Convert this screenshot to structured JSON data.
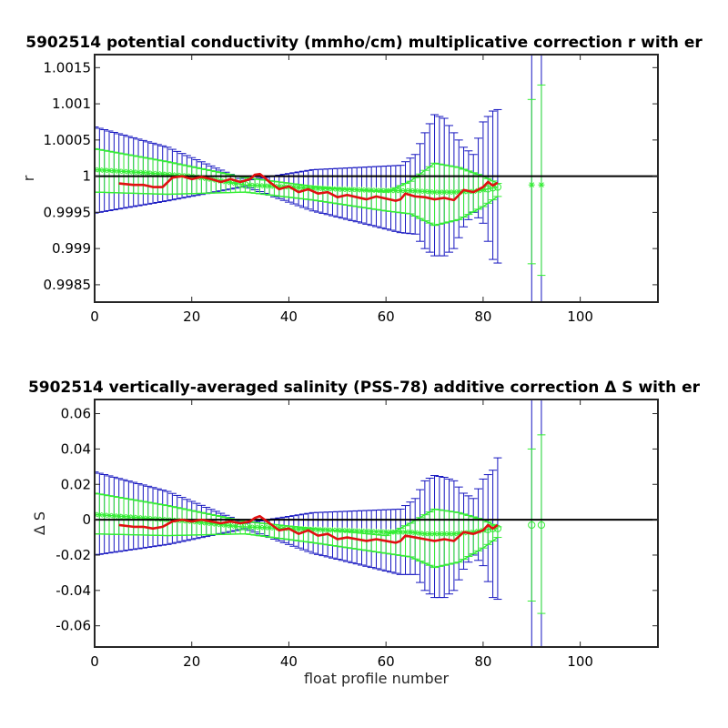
{
  "chart_data": [
    {
      "type": "line",
      "title": "5902514 potential conductivity (mmho/cm) multiplicative correction r with er",
      "xlabel": "",
      "ylabel": "r",
      "xlim": [
        0,
        116
      ],
      "ylim": [
        0.99826,
        1.00168
      ],
      "reference_line": 1.0,
      "xticks": [
        0,
        20,
        40,
        60,
        80,
        100
      ],
      "xtick_labels": [
        "0",
        "20",
        "40",
        "60",
        "80",
        "100"
      ],
      "yticks": [
        0.9985,
        0.999,
        0.9995,
        1.0,
        1.0005,
        1.001,
        1.0015
      ],
      "ytick_labels": [
        "0.9985",
        "0.999",
        "0.9995",
        "1",
        "1.0005",
        "1.001",
        "1.0015"
      ],
      "grid": false,
      "colors": {
        "reference": "#000000",
        "raw_series": "#e01010",
        "fit_series": "#33ee33",
        "envelope_series": "#33ee33",
        "error_bars_big": "#1515c0",
        "error_bars_small": "#33ee33"
      },
      "fit": {
        "x": [
          0,
          10,
          20,
          30,
          31,
          40,
          50,
          60,
          65,
          68,
          70,
          74,
          78,
          80,
          82,
          83,
          90,
          92
        ],
        "y": [
          1.00009,
          1.00005,
          1.0,
          0.99989,
          0.99988,
          0.99985,
          0.99982,
          0.9998,
          0.9998,
          0.99979,
          0.99978,
          0.99978,
          0.99979,
          0.99981,
          0.99984,
          0.99985,
          0.99988,
          0.99988
        ]
      },
      "upper_envelope": {
        "x": [
          0,
          15,
          31,
          45,
          60,
          65,
          70,
          75,
          80,
          83
        ],
        "y": [
          1.00038,
          1.0002,
          0.99998,
          0.99986,
          0.99978,
          0.99993,
          1.00018,
          1.00012,
          1.0,
          0.9999
        ]
      },
      "lower_envelope": {
        "x": [
          0,
          15,
          31,
          45,
          60,
          65,
          70,
          75,
          80,
          83
        ],
        "y": [
          0.99978,
          0.99975,
          0.99978,
          0.99967,
          0.99952,
          0.99948,
          0.99932,
          0.9994,
          0.99958,
          0.99972
        ]
      },
      "error_bars_big": [
        {
          "x": 0,
          "lo": 0.99949,
          "hi": 1.00068
        },
        {
          "x": 15,
          "lo": 0.99966,
          "hi": 1.0004
        },
        {
          "x": 31,
          "lo": 0.99986,
          "hi": 0.99994
        },
        {
          "x": 45,
          "lo": 0.99952,
          "hi": 1.00009
        },
        {
          "x": 63,
          "lo": 0.99922,
          "hi": 1.00015
        },
        {
          "x": 66,
          "lo": 0.9992,
          "hi": 1.0003
        },
        {
          "x": 68,
          "lo": 0.999,
          "hi": 1.0006
        },
        {
          "x": 70,
          "lo": 0.9989,
          "hi": 1.00085
        },
        {
          "x": 72,
          "lo": 0.9989,
          "hi": 1.0008
        },
        {
          "x": 74,
          "lo": 0.999,
          "hi": 1.0006
        },
        {
          "x": 76,
          "lo": 0.9993,
          "hi": 1.0004
        },
        {
          "x": 78,
          "lo": 0.9995,
          "hi": 1.0003
        },
        {
          "x": 80,
          "lo": 0.99935,
          "hi": 1.00075
        },
        {
          "x": 82,
          "lo": 0.99885,
          "hi": 1.0009
        },
        {
          "x": 83,
          "lo": 0.9988,
          "hi": 1.00092
        },
        {
          "x": 90,
          "lo": 0.99826,
          "hi": 1.00168
        },
        {
          "x": 92,
          "lo": 0.99826,
          "hi": 1.00168
        }
      ],
      "error_bars_small": [
        {
          "x": 90,
          "lo": 0.99879,
          "hi": 1.00106
        },
        {
          "x": 92,
          "lo": 0.99863,
          "hi": 1.00126
        }
      ],
      "raw": {
        "x": [
          5,
          8,
          10,
          12,
          14,
          16,
          18,
          20,
          22,
          24,
          26,
          28,
          30,
          32,
          33,
          34,
          35,
          36,
          38,
          40,
          42,
          44,
          46,
          48,
          50,
          52,
          54,
          56,
          58,
          60,
          62,
          63,
          64,
          66,
          68,
          70,
          72,
          74,
          76,
          78,
          80,
          81,
          82,
          83
        ],
        "y": [
          0.9999,
          0.99988,
          0.99988,
          0.99985,
          0.99985,
          0.99998,
          1.0,
          0.99996,
          0.99999,
          0.99996,
          0.99992,
          0.99996,
          0.99992,
          0.99996,
          1.00002,
          1.00003,
          0.99998,
          0.99992,
          0.99982,
          0.99986,
          0.99978,
          0.99982,
          0.99976,
          0.99978,
          0.99971,
          0.99974,
          0.99971,
          0.99968,
          0.99972,
          0.99969,
          0.99966,
          0.99968,
          0.99976,
          0.99972,
          0.99971,
          0.99968,
          0.9997,
          0.99967,
          0.99981,
          0.99978,
          0.99985,
          0.99992,
          0.99987,
          0.99991
        ]
      }
    },
    {
      "type": "line",
      "title": "5902514 vertically-averaged salinity (PSS-78) additive correction Δ S with er",
      "xlabel": "float profile number",
      "ylabel": "Δ S",
      "xlim": [
        0,
        116
      ],
      "ylim": [
        -0.072,
        0.068
      ],
      "reference_line": 0.0,
      "xticks": [
        0,
        20,
        40,
        60,
        80,
        100
      ],
      "xtick_labels": [
        "0",
        "20",
        "40",
        "60",
        "80",
        "100"
      ],
      "yticks": [
        -0.06,
        -0.04,
        -0.02,
        0,
        0.02,
        0.04,
        0.06
      ],
      "ytick_labels": [
        "-0.06",
        "-0.04",
        "-0.02",
        "0",
        "0.02",
        "0.04",
        "0.06"
      ],
      "grid": false,
      "colors": {
        "reference": "#000000",
        "raw_series": "#e01010",
        "fit_series": "#33ee33",
        "envelope_series": "#33ee33",
        "error_bars_big": "#1515c0",
        "error_bars_small": "#33ee33"
      },
      "fit": {
        "x": [
          0,
          10,
          20,
          30,
          31,
          40,
          50,
          60,
          65,
          68,
          70,
          74,
          78,
          80,
          82,
          83,
          90,
          92
        ],
        "y": [
          0.003,
          0.001,
          -0.001,
          -0.004,
          -0.004,
          -0.005,
          -0.006,
          -0.007,
          -0.007,
          -0.008,
          -0.008,
          -0.008,
          -0.007,
          -0.006,
          -0.005,
          -0.005,
          -0.003,
          -0.003
        ]
      },
      "upper_envelope": {
        "x": [
          0,
          15,
          31,
          45,
          60,
          65,
          70,
          75,
          80,
          83
        ],
        "y": [
          0.015,
          0.008,
          -0.001,
          -0.005,
          -0.009,
          -0.002,
          0.006,
          0.004,
          0.0,
          -0.004
        ]
      },
      "lower_envelope": {
        "x": [
          0,
          15,
          31,
          45,
          60,
          65,
          70,
          75,
          80,
          83
        ],
        "y": [
          -0.008,
          -0.009,
          -0.008,
          -0.013,
          -0.019,
          -0.021,
          -0.027,
          -0.024,
          -0.016,
          -0.01
        ]
      },
      "error_bars_big": [
        {
          "x": 0,
          "lo": -0.02,
          "hi": 0.027
        },
        {
          "x": 15,
          "lo": -0.014,
          "hi": 0.016
        },
        {
          "x": 31,
          "lo": -0.005,
          "hi": -0.002
        },
        {
          "x": 45,
          "lo": -0.019,
          "hi": 0.004
        },
        {
          "x": 63,
          "lo": -0.031,
          "hi": 0.006
        },
        {
          "x": 66,
          "lo": -0.031,
          "hi": 0.012
        },
        {
          "x": 68,
          "lo": -0.04,
          "hi": 0.022
        },
        {
          "x": 70,
          "lo": -0.044,
          "hi": 0.025
        },
        {
          "x": 72,
          "lo": -0.044,
          "hi": 0.024
        },
        {
          "x": 74,
          "lo": -0.04,
          "hi": 0.022
        },
        {
          "x": 76,
          "lo": -0.028,
          "hi": 0.015
        },
        {
          "x": 78,
          "lo": -0.02,
          "hi": 0.012
        },
        {
          "x": 80,
          "lo": -0.026,
          "hi": 0.023
        },
        {
          "x": 82,
          "lo": -0.044,
          "hi": 0.028
        },
        {
          "x": 83,
          "lo": -0.045,
          "hi": 0.035
        },
        {
          "x": 90,
          "lo": -0.072,
          "hi": 0.068
        },
        {
          "x": 92,
          "lo": -0.072,
          "hi": 0.068
        }
      ],
      "error_bars_small": [
        {
          "x": 90,
          "lo": -0.046,
          "hi": 0.04
        },
        {
          "x": 92,
          "lo": -0.053,
          "hi": 0.048
        }
      ],
      "raw": {
        "x": [
          5,
          8,
          10,
          12,
          14,
          16,
          18,
          20,
          22,
          24,
          26,
          28,
          30,
          32,
          33,
          34,
          35,
          36,
          38,
          40,
          42,
          44,
          46,
          48,
          50,
          52,
          54,
          56,
          58,
          60,
          62,
          63,
          64,
          66,
          68,
          70,
          72,
          74,
          76,
          78,
          80,
          81,
          82,
          83
        ],
        "y": [
          -0.003,
          -0.004,
          -0.004,
          -0.005,
          -0.004,
          -0.001,
          0.0,
          -0.001,
          0.0,
          -0.001,
          -0.002,
          -0.001,
          -0.002,
          -0.001,
          0.001,
          0.002,
          0.0,
          -0.002,
          -0.006,
          -0.005,
          -0.008,
          -0.006,
          -0.009,
          -0.008,
          -0.011,
          -0.01,
          -0.011,
          -0.012,
          -0.011,
          -0.012,
          -0.013,
          -0.012,
          -0.009,
          -0.01,
          -0.011,
          -0.012,
          -0.011,
          -0.012,
          -0.007,
          -0.008,
          -0.006,
          -0.003,
          -0.005,
          -0.003
        ]
      }
    }
  ]
}
